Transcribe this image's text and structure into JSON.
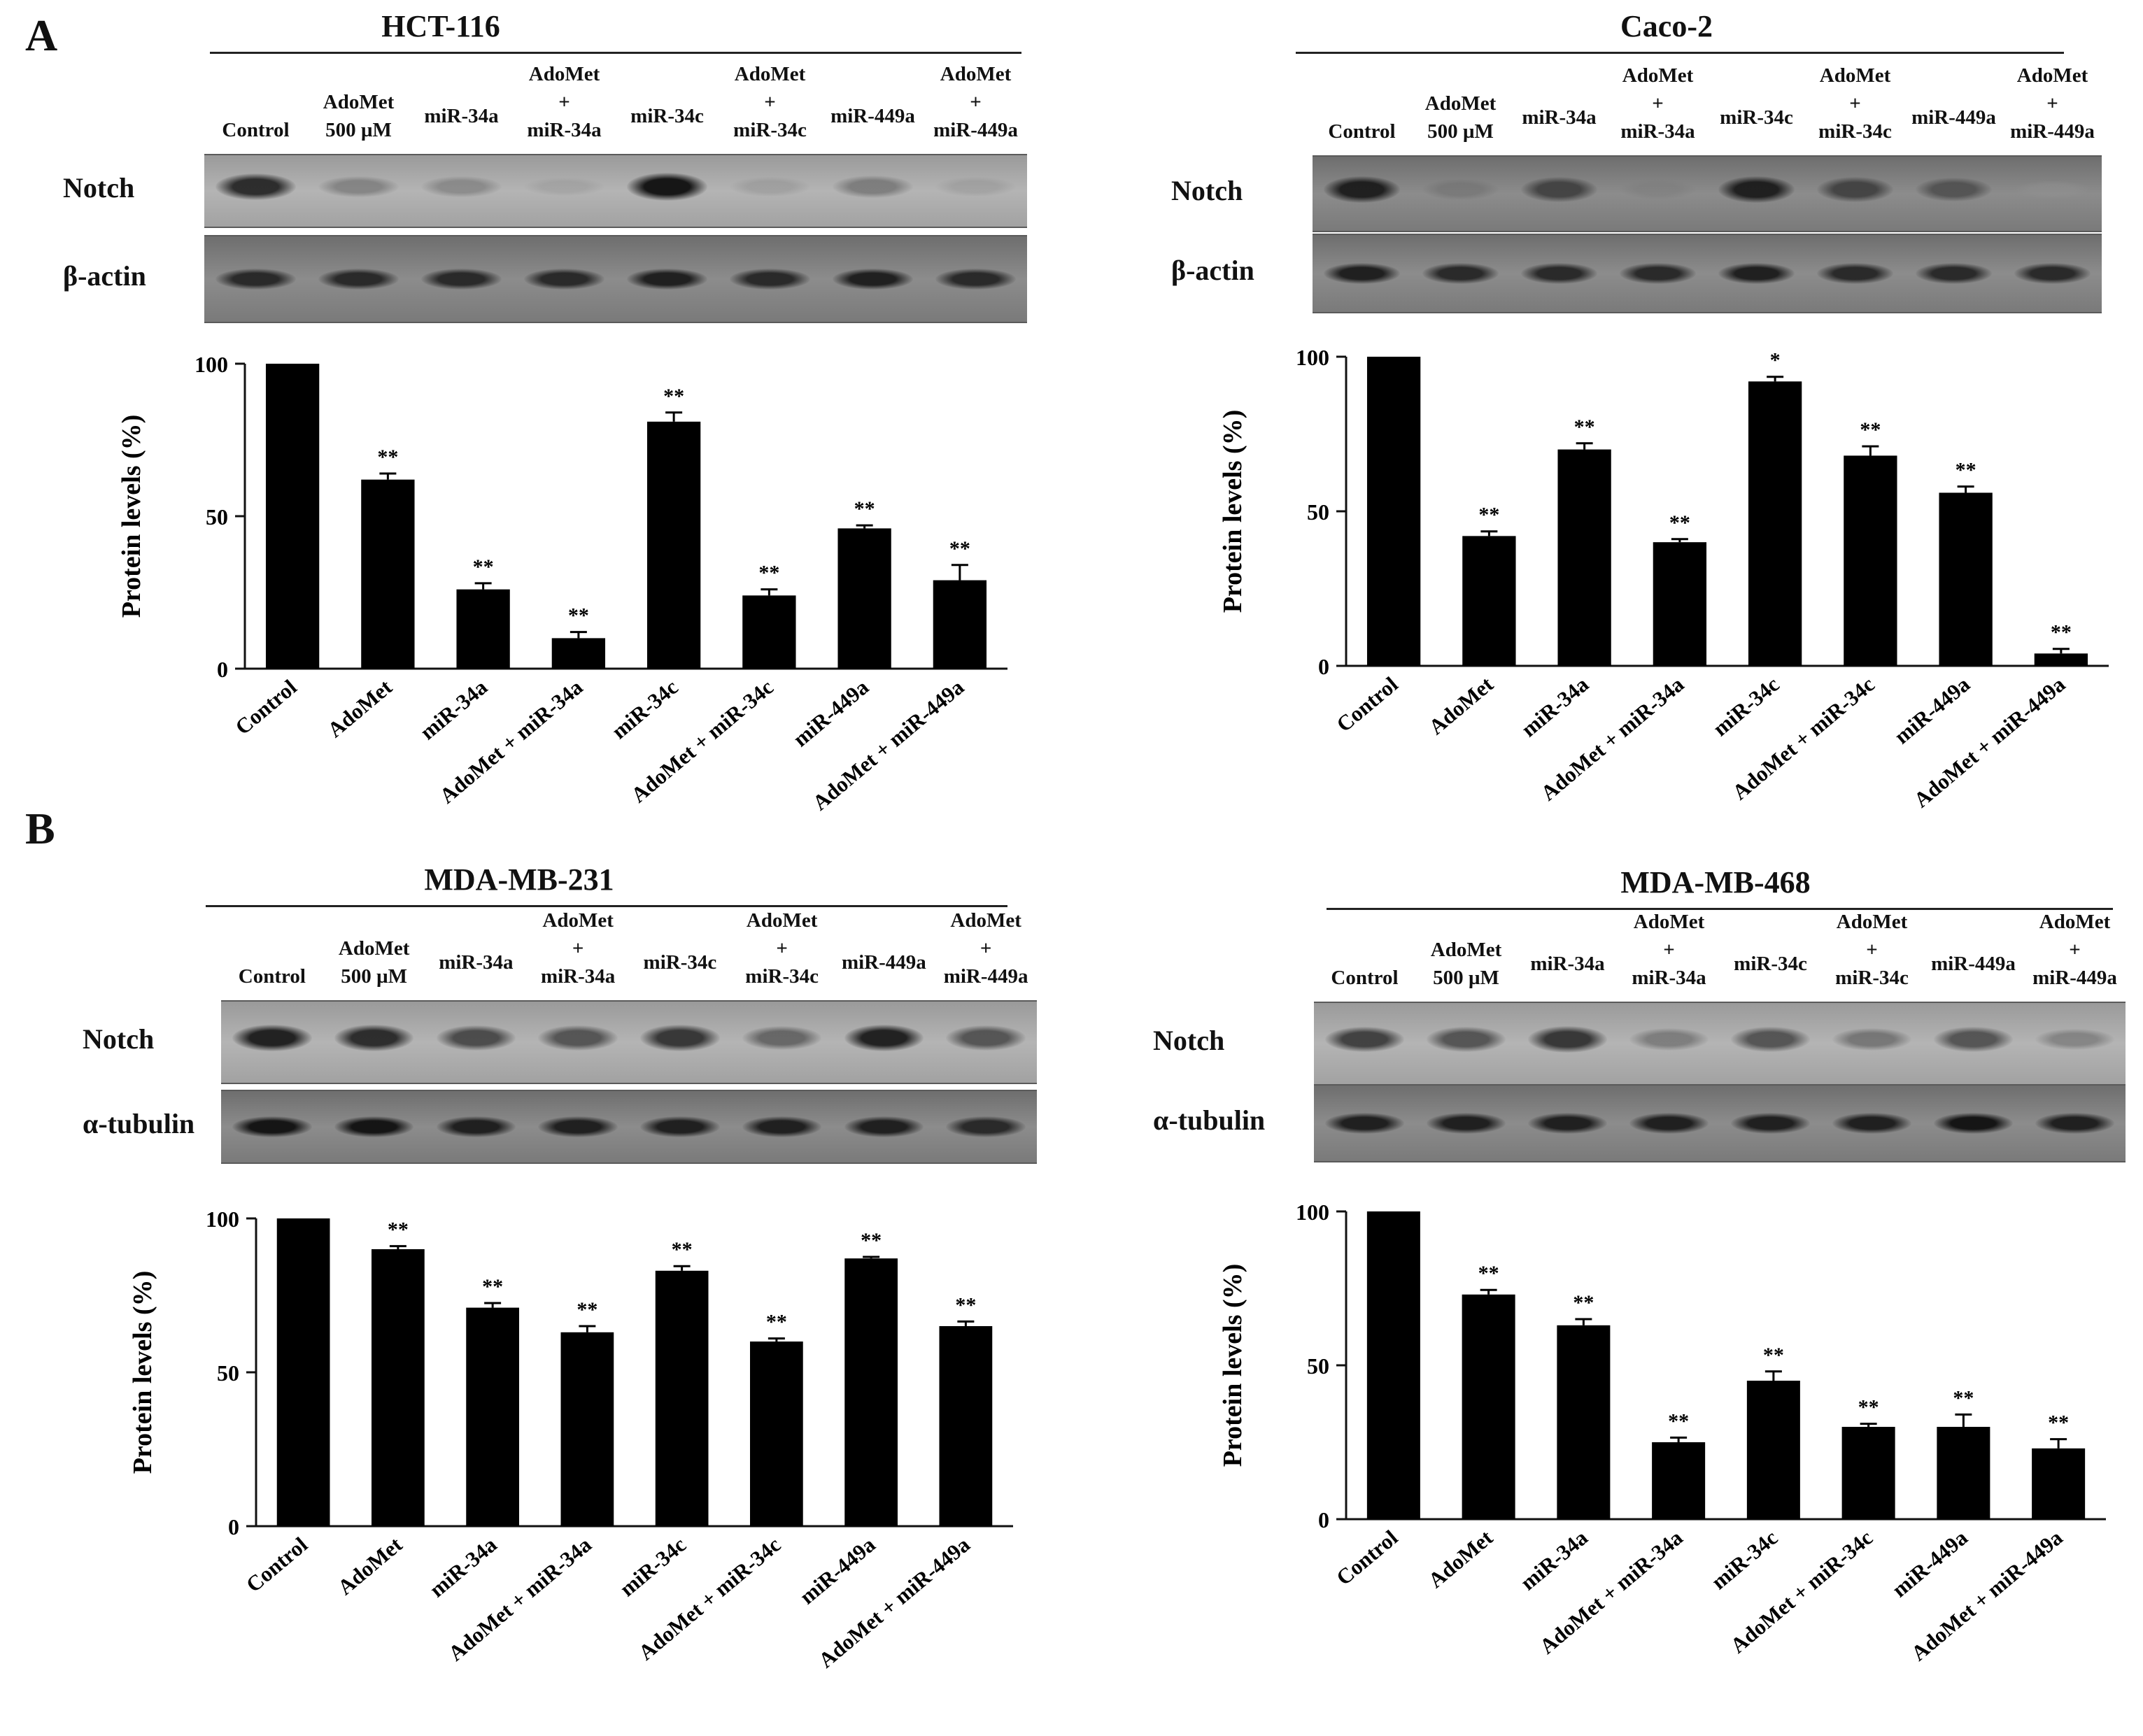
{
  "figure": {
    "panel_letters": [
      "A",
      "B"
    ]
  },
  "chart_data": [
    {
      "id": "hct116",
      "type": "bar",
      "title": "HCT-116",
      "blot_lanes": [
        [
          "Control"
        ],
        [
          "AdoMet",
          "500 µM"
        ],
        [
          "miR-34a"
        ],
        [
          "AdoMet",
          "+",
          "miR-34a"
        ],
        [
          "miR-34c"
        ],
        [
          "AdoMet",
          "+",
          "miR-34c"
        ],
        [
          "miR-449a"
        ],
        [
          "AdoMet",
          "+",
          "miR-449a"
        ]
      ],
      "blot_rows": [
        {
          "label": "Notch",
          "band_intensity": [
            0.85,
            0.35,
            0.3,
            0.05,
            0.95,
            0.1,
            0.4,
            0.08
          ]
        },
        {
          "label": "β-actin",
          "band_intensity": [
            0.85,
            0.85,
            0.85,
            0.85,
            0.9,
            0.85,
            0.9,
            0.85
          ]
        }
      ],
      "categories": [
        "Control",
        "AdoMet",
        "miR-34a",
        "AdoMet + miR-34a",
        "miR-34c",
        "AdoMet + miR-34c",
        "miR-449a",
        "AdoMet + miR-449a"
      ],
      "values": [
        100,
        62,
        26,
        10,
        81,
        24,
        46,
        29
      ],
      "errors": [
        0,
        2,
        2,
        2,
        3,
        2,
        1,
        5
      ],
      "significance": [
        "",
        "**",
        "**",
        "**",
        "**",
        "**",
        "**",
        "**"
      ],
      "ylabel": "Protein levels (%)",
      "yticks": [
        0,
        50,
        100
      ],
      "ylim": [
        0,
        100
      ]
    },
    {
      "id": "caco2",
      "type": "bar",
      "title": "Caco-2",
      "blot_lanes": [
        [
          "Control"
        ],
        [
          "AdoMet",
          "500 µM"
        ],
        [
          "miR-34a"
        ],
        [
          "AdoMet",
          "+",
          "miR-34a"
        ],
        [
          "miR-34c"
        ],
        [
          "AdoMet",
          "+",
          "miR-34c"
        ],
        [
          "miR-449a"
        ],
        [
          "AdoMet",
          "+",
          "miR-449a"
        ]
      ],
      "blot_rows": [
        {
          "label": "Notch",
          "band_intensity": [
            0.9,
            0.3,
            0.7,
            0.2,
            0.9,
            0.7,
            0.6,
            0.02
          ]
        },
        {
          "label": "β-actin",
          "band_intensity": [
            0.9,
            0.85,
            0.85,
            0.85,
            0.9,
            0.85,
            0.85,
            0.85
          ]
        }
      ],
      "categories": [
        "Control",
        "AdoMet",
        "miR-34a",
        "AdoMet + miR-34a",
        "miR-34c",
        "AdoMet + miR-34c",
        "miR-449a",
        "AdoMet + miR-449a"
      ],
      "values": [
        100,
        42,
        70,
        40,
        92,
        68,
        56,
        4
      ],
      "errors": [
        0,
        1.5,
        2,
        1,
        1.5,
        3,
        2,
        1.5
      ],
      "significance": [
        "",
        "**",
        "**",
        "**",
        "*",
        "**",
        "**",
        "**"
      ],
      "ylabel": "Protein levels (%)",
      "yticks": [
        0,
        50,
        100
      ],
      "ylim": [
        0,
        100
      ]
    },
    {
      "id": "mdamb231",
      "type": "bar",
      "title": "MDA-MB-231",
      "blot_lanes": [
        [
          "Control"
        ],
        [
          "AdoMet",
          "500 µM"
        ],
        [
          "miR-34a"
        ],
        [
          "AdoMet",
          "+",
          "miR-34a"
        ],
        [
          "miR-34c"
        ],
        [
          "AdoMet",
          "+",
          "miR-34c"
        ],
        [
          "miR-449a"
        ],
        [
          "AdoMet",
          "+",
          "miR-449a"
        ]
      ],
      "blot_rows": [
        {
          "label": "Notch",
          "band_intensity": [
            0.9,
            0.85,
            0.7,
            0.65,
            0.8,
            0.55,
            0.9,
            0.65
          ]
        },
        {
          "label": "α-tubulin",
          "band_intensity": [
            0.95,
            0.95,
            0.9,
            0.9,
            0.9,
            0.9,
            0.9,
            0.85
          ]
        }
      ],
      "categories": [
        "Control",
        "AdoMet",
        "miR-34a",
        "AdoMet + miR-34a",
        "miR-34c",
        "AdoMet + miR-34c",
        "miR-449a",
        "AdoMet + miR-449a"
      ],
      "values": [
        100,
        90,
        71,
        63,
        83,
        60,
        87,
        65
      ],
      "errors": [
        0,
        1,
        1.5,
        2,
        1.5,
        1,
        0.5,
        1.5
      ],
      "significance": [
        "",
        "**",
        "**",
        "**",
        "**",
        "**",
        "**",
        "**"
      ],
      "ylabel": "Protein levels (%)",
      "yticks": [
        0,
        50,
        100
      ],
      "ylim": [
        0,
        100
      ]
    },
    {
      "id": "mdamb468",
      "type": "bar",
      "title": "MDA-MB-468",
      "blot_lanes": [
        [
          "Control"
        ],
        [
          "AdoMet",
          "500 µM"
        ],
        [
          "miR-34a"
        ],
        [
          "AdoMet",
          "+",
          "miR-34a"
        ],
        [
          "miR-34c"
        ],
        [
          "AdoMet",
          "+",
          "miR-34c"
        ],
        [
          "miR-449a"
        ],
        [
          "AdoMet",
          "+",
          "miR-449a"
        ]
      ],
      "blot_rows": [
        {
          "label": "Notch",
          "band_intensity": [
            0.75,
            0.65,
            0.8,
            0.4,
            0.65,
            0.45,
            0.65,
            0.35
          ]
        },
        {
          "label": "α-tubulin",
          "band_intensity": [
            0.9,
            0.9,
            0.9,
            0.9,
            0.9,
            0.9,
            0.95,
            0.9
          ]
        }
      ],
      "categories": [
        "Control",
        "AdoMet",
        "miR-34a",
        "AdoMet + miR-34a",
        "miR-34c",
        "AdoMet + miR-34c",
        "miR-449a",
        "AdoMet + miR-449a"
      ],
      "values": [
        100,
        73,
        63,
        25,
        45,
        30,
        30,
        23
      ],
      "errors": [
        0,
        1.5,
        2,
        1.5,
        3,
        1,
        4,
        3
      ],
      "significance": [
        "",
        "**",
        "**",
        "**",
        "**",
        "**",
        "**",
        "**"
      ],
      "ylabel": "Protein levels (%)",
      "yticks": [
        0,
        50,
        100
      ],
      "ylim": [
        0,
        100
      ]
    }
  ]
}
